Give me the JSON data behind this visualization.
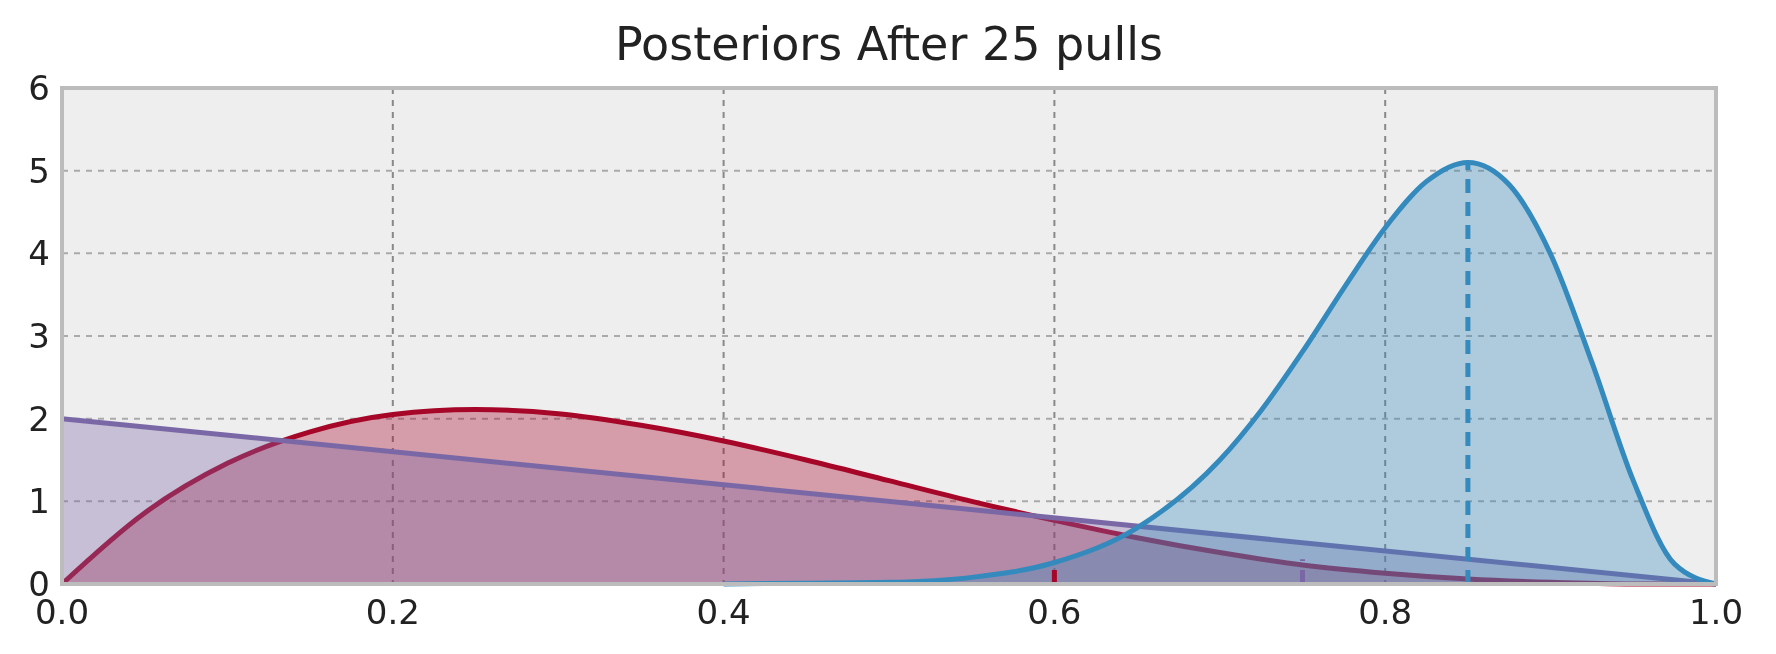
{
  "chart_data": {
    "type": "area",
    "title": "Posteriors After 25 pulls",
    "xlim": [
      0,
      1
    ],
    "xticks": [
      {
        "value": 0,
        "label": "0.0"
      },
      {
        "value": 0.2,
        "label": "0.2"
      },
      {
        "value": 0.4,
        "label": "0.4"
      },
      {
        "value": 0.6,
        "label": "0.6"
      },
      {
        "value": 0.8,
        "label": "0.8"
      },
      {
        "value": 1,
        "label": "1.0"
      }
    ],
    "ylim": [
      0,
      6
    ],
    "yticks": [
      0,
      1,
      2,
      3,
      4,
      5,
      6
    ],
    "grid": true,
    "series": [
      {
        "color": "#a60628",
        "x": [
          0,
          0.05,
          0.1,
          0.15,
          0.2,
          0.25,
          0.3,
          0.35,
          0.4,
          0.45,
          0.5,
          0.55,
          0.6,
          0.65,
          0.7,
          0.75,
          0.8,
          0.85,
          0.9,
          0.95,
          1
        ],
        "values": [
          0,
          0.86,
          1.46,
          1.84,
          2.05,
          2.11,
          2.06,
          1.92,
          1.73,
          1.5,
          1.25,
          1,
          0.77,
          0.56,
          0.38,
          0.23,
          0.13,
          0.06,
          0.02,
          0,
          0
        ]
      },
      {
        "color": "#7a68a6",
        "x": [
          0,
          1
        ],
        "values": [
          2,
          0
        ]
      },
      {
        "color": "#348abd",
        "x": [
          0.4,
          0.45,
          0.5,
          0.55,
          0.6,
          0.65,
          0.7,
          0.725,
          0.75,
          0.775,
          0.8,
          0.825,
          0.85,
          0.875,
          0.9,
          0.925,
          0.95,
          0.975,
          1
        ],
        "values": [
          0,
          0.01,
          0.02,
          0.08,
          0.26,
          0.68,
          1.5,
          2.1,
          2.81,
          3.58,
          4.31,
          4.87,
          5.1,
          4.83,
          3.99,
          2.68,
          1.25,
          0.24,
          0
        ]
      },
      {
        "type": "line",
        "line_style": "dashed",
        "color": "#a60628",
        "x": [
          0.6,
          0.6
        ],
        "values": [
          0,
          0.2
        ]
      },
      {
        "type": "line",
        "line_style": "dashed",
        "color": "#7a68a6",
        "x": [
          0.75,
          0.75
        ],
        "values": [
          0,
          0.3
        ]
      },
      {
        "type": "line",
        "line_style": "dashed",
        "color": "#348abd",
        "x": [
          0.85,
          0.85
        ],
        "values": [
          0,
          5.1
        ]
      }
    ]
  }
}
